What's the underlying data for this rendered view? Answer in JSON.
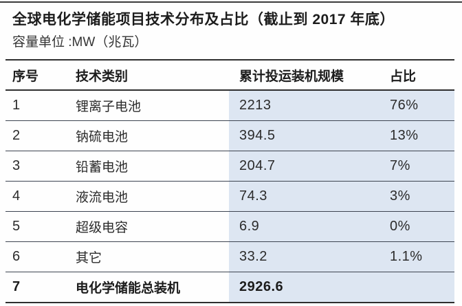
{
  "page": {
    "title": "全球电化学储能项目技术分布及占比（截止到 2017 年底）",
    "subtitle": "容量单位 :MW（兆瓦）"
  },
  "table": {
    "columns": [
      "序号",
      "技术类别",
      "累计投运装机规模",
      "占比"
    ],
    "rows": [
      {
        "no": "1",
        "category": "锂离子电池",
        "capacity": "2213",
        "share": "76%"
      },
      {
        "no": "2",
        "category": "钠硫电池",
        "capacity": "394.5",
        "share": "13%"
      },
      {
        "no": "3",
        "category": "铅蓄电池",
        "capacity": "204.7",
        "share": "7%"
      },
      {
        "no": "4",
        "category": "液流电池",
        "capacity": "74.3",
        "share": "3%"
      },
      {
        "no": "5",
        "category": "超级电容",
        "capacity": "6.9",
        "share": "0%"
      },
      {
        "no": "6",
        "category": "其它",
        "capacity": "33.2",
        "share": "1.1%"
      },
      {
        "no": "7",
        "category": "电化学储能总装机",
        "capacity": "2926.6",
        "share": ""
      }
    ]
  },
  "colors": {
    "highlight": "#dde6f2",
    "rule_dark": "#2e2e2e",
    "rule_row": "#3c4350",
    "text": "#2b2b2b"
  }
}
